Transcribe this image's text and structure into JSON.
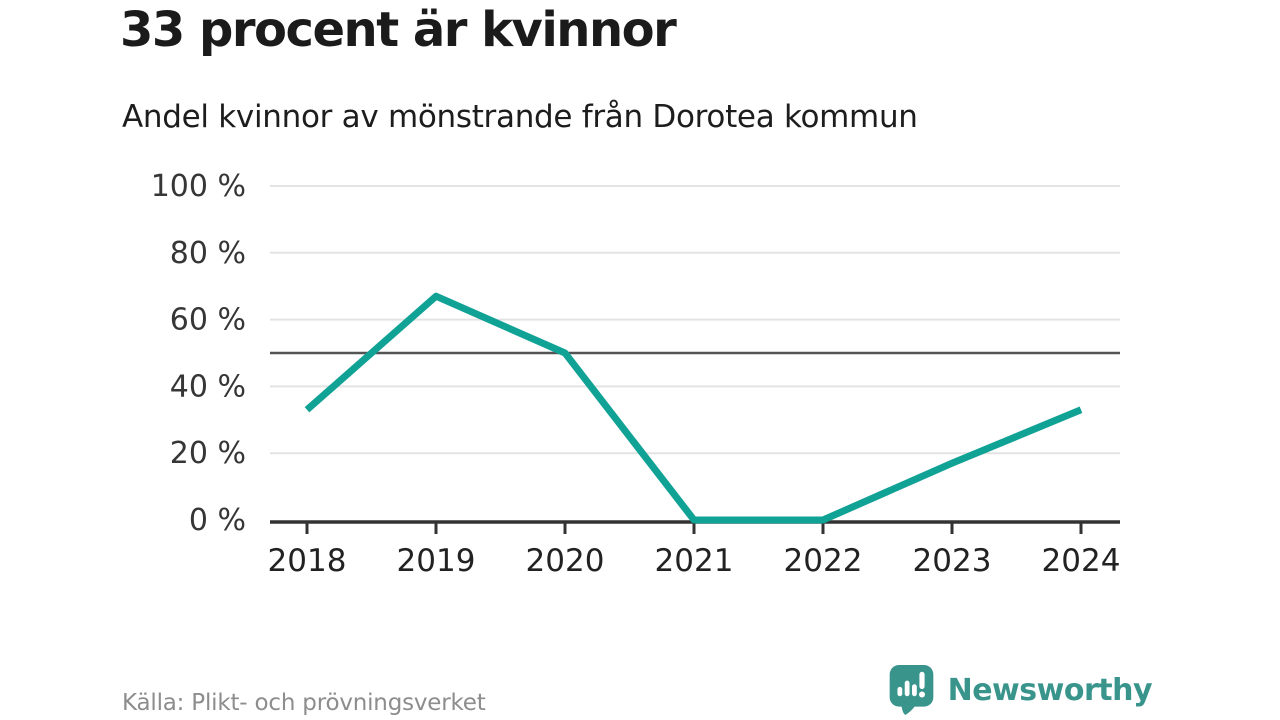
{
  "header": {
    "title": "33 procent är kvinnor",
    "subtitle": "Andel kvinnor av mönstrande från Dorotea kommun"
  },
  "chart_data": {
    "type": "line",
    "x": [
      2018,
      2019,
      2020,
      2021,
      2022,
      2023,
      2024
    ],
    "series": [
      {
        "name": "Andel kvinnor av mönstrande",
        "values": [
          33,
          67,
          50,
          0,
          0,
          17,
          33
        ]
      }
    ],
    "title": "33 procent är kvinnor",
    "subtitle": "Andel kvinnor av mönstrande från Dorotea kommun",
    "xlabel": "",
    "ylabel": "",
    "ylim": [
      0,
      100
    ],
    "yticks": [
      0,
      20,
      40,
      60,
      80,
      100
    ],
    "ytick_label_suffix": " %",
    "reference_line": 50,
    "grid": true,
    "legend": "none",
    "colors": {
      "line": "#11a296",
      "grid": "#e3e3e3",
      "reference": "#545454",
      "axis": "#333333",
      "tick_label": "#363636",
      "x_label": "#222222"
    }
  },
  "footer": {
    "source": "Källa: Plikt- och prövningsverket",
    "brand": "Newsworthy",
    "brand_color": "#39948c"
  }
}
